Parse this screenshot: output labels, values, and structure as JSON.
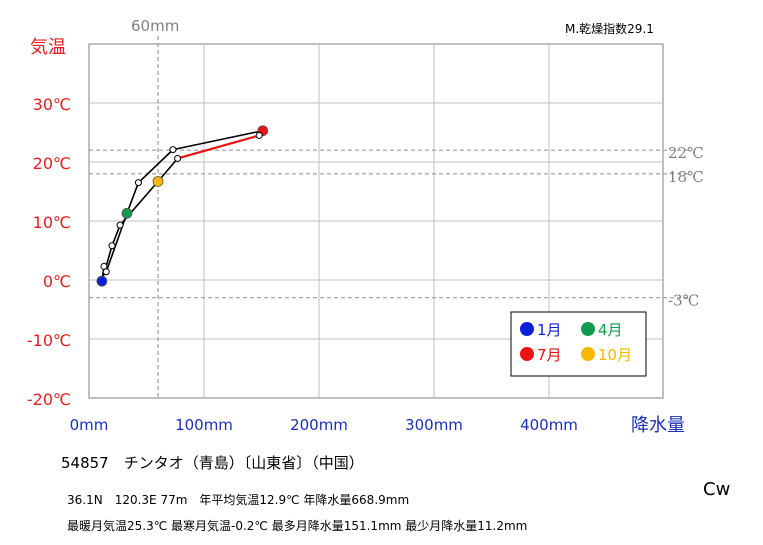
{
  "chart_data": {
    "type": "line",
    "ylabel": "気温",
    "xlabel": "降水量",
    "xlim": [
      0,
      500
    ],
    "ylim": [
      -20,
      40
    ],
    "x_ticks": [
      {
        "value": 0,
        "label": "0mm"
      },
      {
        "value": 100,
        "label": "100mm"
      },
      {
        "value": 200,
        "label": "200mm"
      },
      {
        "value": 300,
        "label": "300mm"
      },
      {
        "value": 400,
        "label": "400mm"
      }
    ],
    "y_ticks": [
      {
        "value": 30,
        "label": "30℃"
      },
      {
        "value": 20,
        "label": "20℃"
      },
      {
        "value": 10,
        "label": "10℃"
      },
      {
        "value": 0,
        "label": "0℃"
      },
      {
        "value": -10,
        "label": "-10℃"
      },
      {
        "value": -20,
        "label": "-20℃"
      }
    ],
    "ref_vertical": {
      "value": 60,
      "label": "60mm"
    },
    "ref_horizontal": [
      {
        "value": 22,
        "label": "22℃"
      },
      {
        "value": 18,
        "label": "18℃"
      },
      {
        "value": -3,
        "label": "-3℃"
      }
    ],
    "index_label": "M.乾燥指数29.1",
    "points": [
      {
        "month": 1,
        "precip": 11.2,
        "temp": -0.2
      },
      {
        "month": 2,
        "precip": 13,
        "temp": 2.3
      },
      {
        "month": 3,
        "precip": 15,
        "temp": 1.4
      },
      {
        "month": 4,
        "precip": 33,
        "temp": 11.3
      },
      {
        "month": 5,
        "precip": 43,
        "temp": 16.5
      },
      {
        "month": 6,
        "precip": 73,
        "temp": 22.1
      },
      {
        "month": 7,
        "precip": 151.1,
        "temp": 25.3
      },
      {
        "month": 8,
        "precip": 148,
        "temp": 24.5
      },
      {
        "month": 9,
        "precip": 77,
        "temp": 20.6
      },
      {
        "month": 10,
        "precip": 60,
        "temp": 16.7
      },
      {
        "month": 11,
        "precip": 27,
        "temp": 9.3
      },
      {
        "month": 12,
        "precip": 20,
        "temp": 5.8
      }
    ],
    "legend": [
      {
        "month": 1,
        "label": "1月",
        "color": "#0a1fd8",
        "text_color": "#0a1fd8"
      },
      {
        "month": 4,
        "label": "4月",
        "color": "#0f9c4d",
        "text_color": "#0f9c4d"
      },
      {
        "month": 7,
        "label": "7月",
        "color": "#ee1111",
        "text_color": "#ee1111"
      },
      {
        "month": 10,
        "label": "10月",
        "color": "#f6b800",
        "text_color": "#f6b800"
      }
    ],
    "colors": {
      "axis_text": "#e02020",
      "x_tick_text": "#1a2fb8",
      "ref": "#999999",
      "ref_text": "#808080",
      "hot_segment": "#ee1111"
    }
  },
  "station": {
    "title": "54857　チンタオ（青島）〔山東省〕（中国）",
    "line1": "36.1N　120.3E 77m　年平均気温12.9℃ 年降水量668.9mm",
    "line2": "最暖月気温25.3℃ 最寒月気温-0.2℃ 最多月降水量151.1mm 最少月降水量11.2mm",
    "climate_class": "Cw"
  }
}
